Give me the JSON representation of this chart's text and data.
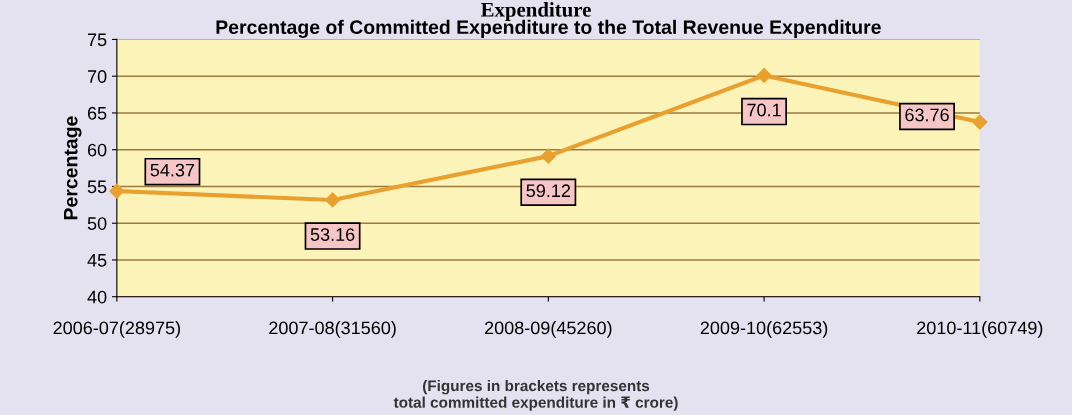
{
  "chart_data": {
    "type": "line",
    "title": "Percentage of Committed Expenditure to the Total Revenue Expenditure",
    "ylabel": "Percentage",
    "categories": [
      "2006-07(28975)",
      "2007-08(31560)",
      "2008-09(45260)",
      "2009-10(62553)",
      "2010-11(60749)"
    ],
    "series": [
      {
        "color": "#e8a030",
        "values": [
          54.37,
          53.16,
          59.12,
          70.1,
          63.76
        ]
      }
    ],
    "ylim": [
      40,
      75
    ],
    "yticks": [
      40,
      45,
      50,
      55,
      60,
      65,
      70,
      75
    ],
    "grid": "y",
    "marker": "diamond",
    "line_style": "solid",
    "data_labels": true,
    "annotations": [
      "Expenditure",
      "(Figures in brackets represents\ntotal committed expenditure in ₹ crore)"
    ]
  }
}
